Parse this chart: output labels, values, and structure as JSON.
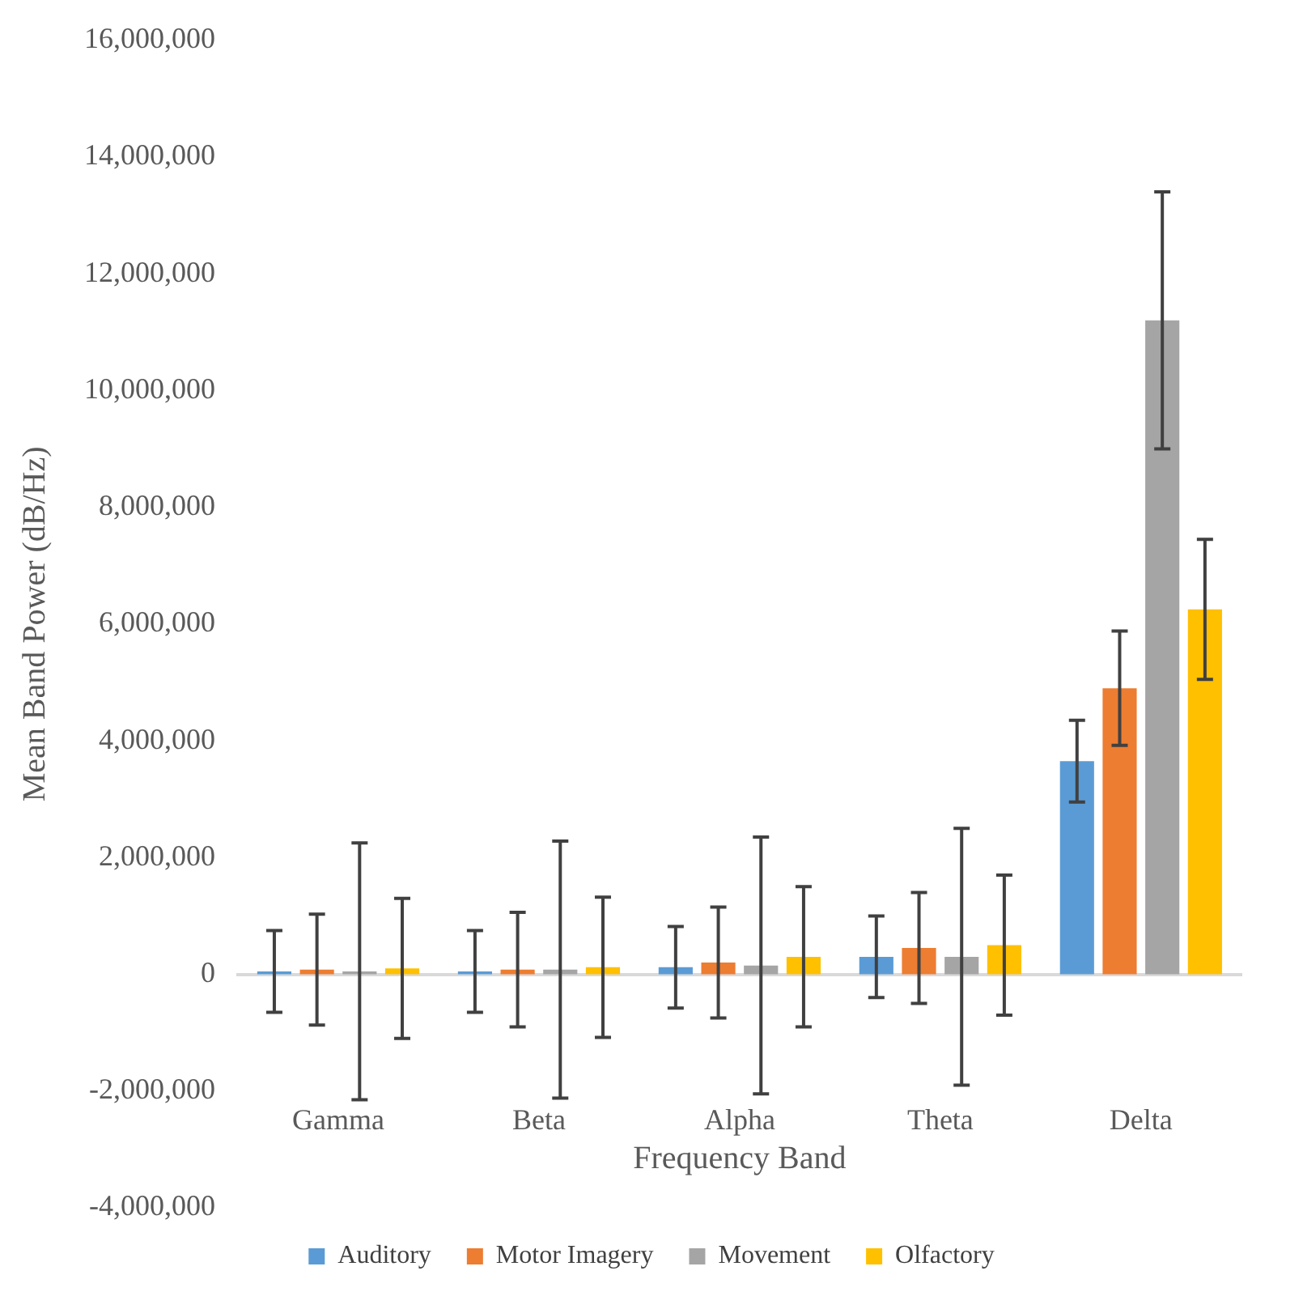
{
  "chart_data": {
    "type": "bar",
    "xlabel": "Frequency Band",
    "ylabel": "Mean Band Power (dB/Hz)",
    "categories": [
      "Gamma",
      "Beta",
      "Alpha",
      "Theta",
      "Delta"
    ],
    "series": [
      {
        "name": "Auditory",
        "color": "#5b9bd5",
        "values": [
          50000,
          50000,
          120000,
          300000,
          3650000
        ],
        "errors": [
          700000,
          700000,
          700000,
          700000,
          700000
        ]
      },
      {
        "name": "Motor Imagery",
        "color": "#ed7d31",
        "values": [
          80000,
          80000,
          200000,
          450000,
          4900000
        ],
        "errors": [
          950000,
          980000,
          950000,
          950000,
          980000
        ]
      },
      {
        "name": "Movement",
        "color": "#a5a5a5",
        "values": [
          50000,
          80000,
          150000,
          300000,
          11200000
        ],
        "errors": [
          2200000,
          2200000,
          2200000,
          2200000,
          2200000
        ]
      },
      {
        "name": "Olfactory",
        "color": "#ffc000",
        "values": [
          100000,
          120000,
          300000,
          500000,
          6250000
        ],
        "errors": [
          1200000,
          1200000,
          1200000,
          1200000,
          1200000
        ]
      }
    ],
    "ylim": [
      -4000000,
      16000000
    ],
    "yticks": [
      {
        "value": -4000000,
        "label": "-4,000,000"
      },
      {
        "value": -2000000,
        "label": "-2,000,000"
      },
      0,
      {
        "value": 2000000,
        "label": "2,000,000"
      },
      {
        "value": 4000000,
        "label": "4,000,000"
      },
      {
        "value": 6000000,
        "label": "6,000,000"
      },
      {
        "value": 8000000,
        "label": "8,000,000"
      },
      {
        "value": 10000000,
        "label": "10,000,000"
      },
      {
        "value": 12000000,
        "label": "12,000,000"
      },
      {
        "value": 14000000,
        "label": "14,000,000"
      },
      {
        "value": 16000000,
        "label": "16,000,000"
      }
    ],
    "legend": "bottom"
  }
}
